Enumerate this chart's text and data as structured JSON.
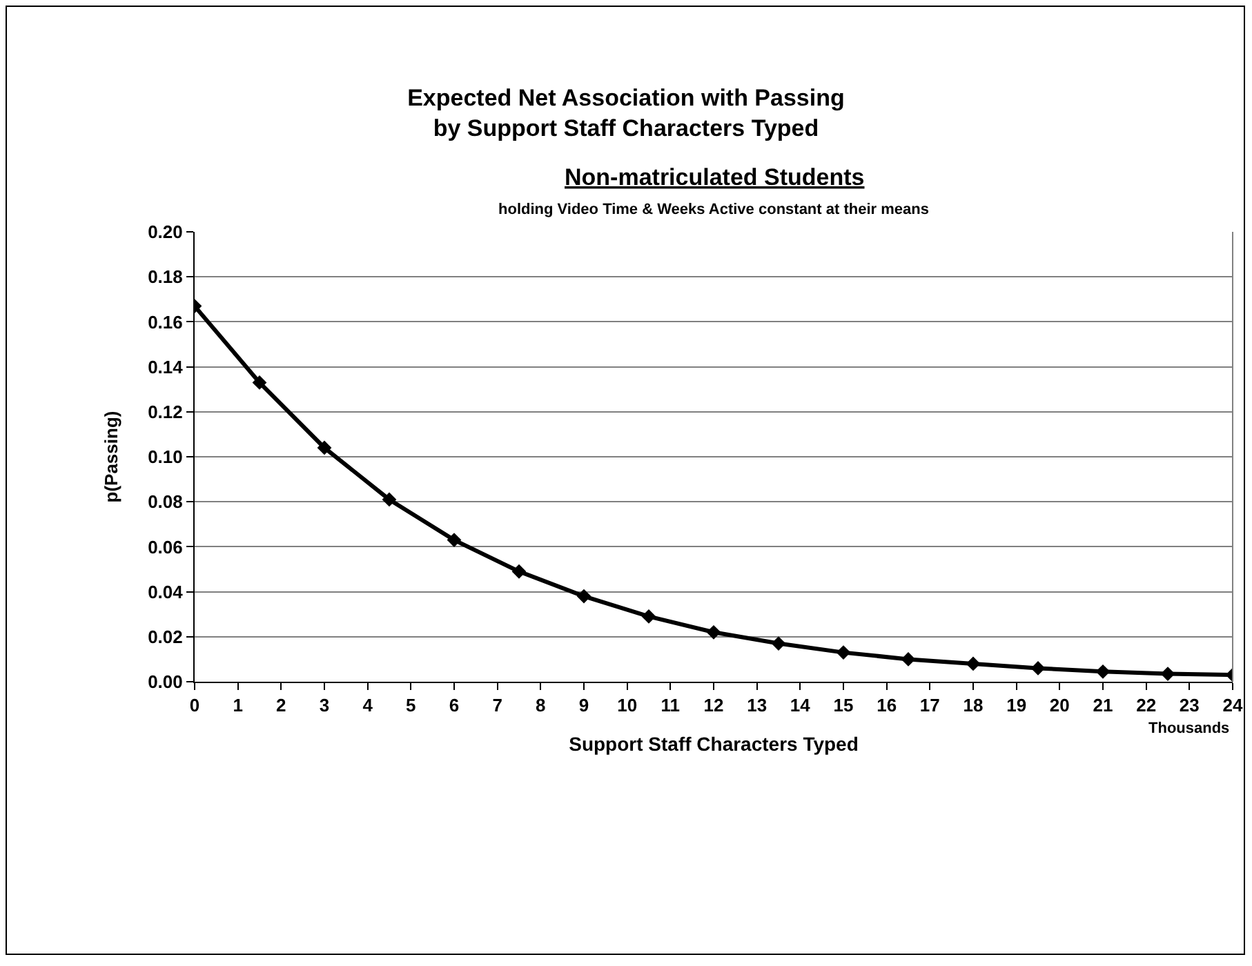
{
  "chart_data": {
    "type": "line",
    "title": "Expected Net Association with Passing\nby Support Staff Characters Typed",
    "subtitle": "Non-matriculated Students",
    "xlabel": "Support Staff Characters Typed",
    "ylabel": "p(Passing)",
    "annotations": [
      "holding Video Time & Weeks Active constant at their means",
      "Thousands"
    ],
    "x": [
      0,
      1.5,
      3,
      4.5,
      6,
      7.5,
      9,
      10.5,
      12,
      13.5,
      15,
      16.5,
      18,
      19.5,
      21,
      22.5,
      24
    ],
    "series": [
      {
        "color": "#000000",
        "values": [
          0.167,
          0.133,
          0.104,
          0.081,
          0.063,
          0.049,
          0.038,
          0.029,
          0.022,
          0.017,
          0.013,
          0.01,
          0.008,
          0.006,
          0.0045,
          0.0035,
          0.003
        ]
      }
    ],
    "xlim": [
      0,
      24
    ],
    "xticks": [
      0,
      1,
      2,
      3,
      4,
      5,
      6,
      7,
      8,
      9,
      10,
      11,
      12,
      13,
      14,
      15,
      16,
      17,
      18,
      19,
      20,
      21,
      22,
      23,
      24
    ],
    "ylim": [
      0,
      0.2
    ],
    "yticks": [
      {
        "value": 0,
        "label": "0.00"
      },
      {
        "value": 0.02,
        "label": "0.02"
      },
      {
        "value": 0.04,
        "label": "0.04"
      },
      {
        "value": 0.06,
        "label": "0.06"
      },
      {
        "value": 0.08,
        "label": "0.08"
      },
      {
        "value": 0.1,
        "label": "0.10"
      },
      {
        "value": 0.12,
        "label": "0.12"
      },
      {
        "value": 0.14,
        "label": "0.14"
      },
      {
        "value": 0.16,
        "label": "0.16"
      },
      {
        "value": 0.18,
        "label": "0.18"
      },
      {
        "value": 0.2,
        "label": "0.20"
      }
    ],
    "grid": "y",
    "marker": "diamond",
    "line_style": "solid"
  }
}
